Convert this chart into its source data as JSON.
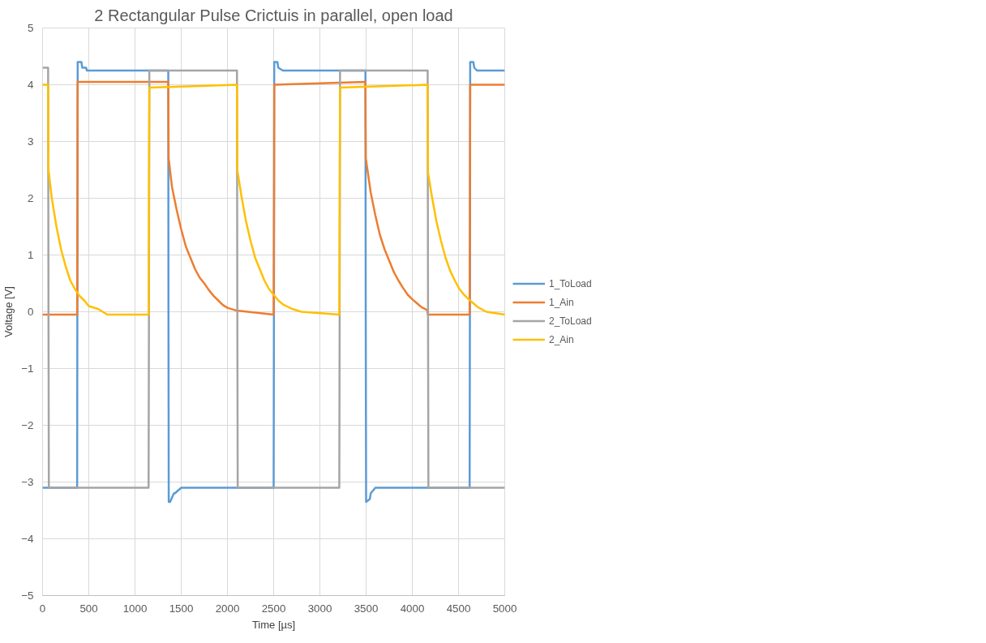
{
  "chart_data": {
    "type": "line",
    "title": "2 Rectangular Pulse Crictuis in parallel, open load",
    "xlabel": "Time [µs]",
    "ylabel": "Voltage [V]",
    "xlim": [
      0,
      5000
    ],
    "xticks": [
      0,
      500,
      1000,
      1500,
      2000,
      2500,
      3000,
      3500,
      4000,
      4500,
      5000
    ],
    "ylim": [
      -5,
      5
    ],
    "yticks": [
      -5,
      -4,
      -3,
      -2,
      -1,
      0,
      1,
      2,
      3,
      4,
      5
    ],
    "grid": true,
    "legend": "right",
    "line_style": "solid",
    "marker": "none",
    "series": [
      {
        "name": "1_ToLoad",
        "color": "#5b9bd5",
        "x": [
          0,
          374,
          380,
          420,
          430,
          470,
          480,
          1360,
          1362,
          1365,
          1380,
          1420,
          1430,
          1500,
          2500,
          2503,
          2506,
          2540,
          2550,
          2600,
          3493,
          3496,
          3500,
          3540,
          3550,
          3600,
          4620,
          4623,
          4626,
          4660,
          4670,
          4700,
          5000
        ],
        "values": [
          -3.1,
          -3.1,
          4.4,
          4.4,
          4.3,
          4.3,
          4.25,
          4.25,
          0.0,
          -3.35,
          -3.35,
          -3.2,
          -3.2,
          -3.1,
          -3.1,
          0.0,
          4.4,
          4.4,
          4.3,
          4.25,
          4.25,
          0.0,
          -3.35,
          -3.3,
          -3.2,
          -3.1,
          -3.1,
          0.0,
          4.4,
          4.4,
          4.3,
          4.25,
          4.25
        ]
      },
      {
        "name": "1_Ain",
        "color": "#ed7d31",
        "x": [
          0,
          374,
          378,
          380,
          1360,
          1364,
          1400,
          1450,
          1500,
          1550,
          1600,
          1650,
          1700,
          1750,
          1800,
          1850,
          1900,
          1950,
          2000,
          2100,
          2500,
          2504,
          2506,
          3493,
          3497,
          3550,
          3600,
          3650,
          3700,
          3750,
          3800,
          3850,
          3900,
          3950,
          4000,
          4050,
          4100,
          4160,
          4168,
          4620,
          4624,
          4626,
          5000
        ],
        "values": [
          -0.05,
          -0.05,
          2.0,
          4.05,
          4.05,
          2.7,
          2.2,
          1.8,
          1.45,
          1.15,
          0.95,
          0.75,
          0.6,
          0.5,
          0.38,
          0.28,
          0.2,
          0.12,
          0.07,
          0.02,
          -0.05,
          2.0,
          4.0,
          4.05,
          2.7,
          2.1,
          1.7,
          1.35,
          1.1,
          0.9,
          0.7,
          0.55,
          0.42,
          0.3,
          0.22,
          0.15,
          0.08,
          0.03,
          -0.05,
          -0.05,
          2.0,
          4.0,
          4.0
        ]
      },
      {
        "name": "2_ToLoad",
        "color": "#a5a5a5",
        "x": [
          0,
          60,
          64,
          68,
          1147,
          1151,
          1155,
          2103,
          2107,
          2111,
          3210,
          3214,
          3218,
          4166,
          4170,
          4174,
          5000
        ],
        "values": [
          4.3,
          4.3,
          0.0,
          -3.1,
          -3.1,
          0.0,
          4.25,
          4.25,
          0.0,
          -3.1,
          -3.1,
          0.0,
          4.25,
          4.25,
          0.0,
          -3.1,
          -3.1
        ]
      },
      {
        "name": "2_Ain",
        "color": "#ffc000",
        "x": [
          0,
          60,
          64,
          100,
          150,
          200,
          250,
          300,
          350,
          400,
          450,
          500,
          600,
          700,
          1147,
          1151,
          1155,
          2103,
          2107,
          2150,
          2200,
          2250,
          2300,
          2350,
          2400,
          2450,
          2500,
          2550,
          2600,
          2700,
          2800,
          3210,
          3214,
          3218,
          4166,
          4170,
          4210,
          4260,
          4310,
          4360,
          4410,
          4460,
          4510,
          4560,
          4610,
          4660,
          4710,
          4800,
          5000
        ],
        "values": [
          4.0,
          4.0,
          2.5,
          2.0,
          1.5,
          1.1,
          0.8,
          0.55,
          0.4,
          0.28,
          0.2,
          0.1,
          0.05,
          -0.05,
          -0.05,
          2.0,
          3.95,
          4.0,
          2.5,
          2.05,
          1.6,
          1.25,
          0.95,
          0.75,
          0.55,
          0.4,
          0.3,
          0.2,
          0.13,
          0.05,
          0.0,
          -0.05,
          2.0,
          3.95,
          4.0,
          2.45,
          2.05,
          1.6,
          1.25,
          0.95,
          0.72,
          0.55,
          0.4,
          0.3,
          0.22,
          0.15,
          0.08,
          0.0,
          -0.05
        ]
      }
    ]
  }
}
